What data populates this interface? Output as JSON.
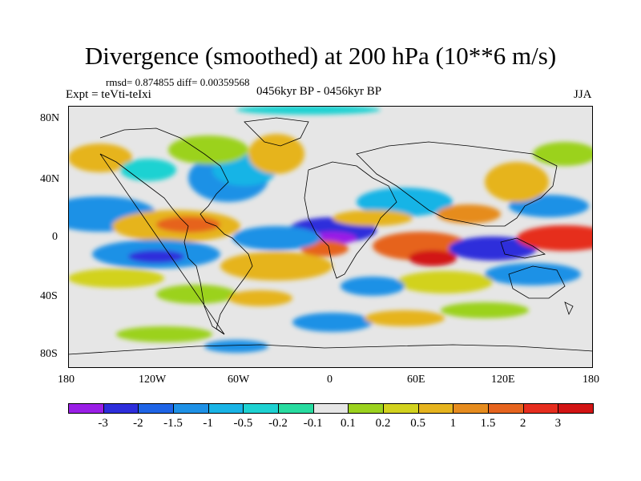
{
  "header": {
    "title": "Divergence (smoothed) at 200 hPa (10**6 m/s)",
    "stats": "rmsd= 0.874855  diff= 0.00359568",
    "experiment": "Expt = teVti-teIxi",
    "period": "0456kyr BP - 0456kyr BP",
    "season": "JJA"
  },
  "axes": {
    "y_ticks": [
      "80N",
      "40N",
      "0",
      "40S",
      "80S"
    ],
    "x_ticks": [
      "180",
      "120W",
      "60W",
      "0",
      "60E",
      "120E",
      "180"
    ]
  },
  "colorbar": {
    "labels": [
      "-3",
      "-2",
      "-1.5",
      "-1",
      "-0.5",
      "-0.2",
      "-0.1",
      "0.1",
      "0.2",
      "0.5",
      "1",
      "1.5",
      "2",
      "3"
    ],
    "colors": [
      "#9a1ee6",
      "#2d2ddb",
      "#1e64e6",
      "#1e91e6",
      "#19b4e6",
      "#1ed2d2",
      "#28dca0",
      "#e6e6e6",
      "#9bd21e",
      "#d2d21e",
      "#e6b41e",
      "#e68c1e",
      "#e6641e",
      "#e62d1e",
      "#d21414"
    ]
  },
  "colors": {
    "background": "#e6e6e6",
    "coastline": "#000000"
  }
}
